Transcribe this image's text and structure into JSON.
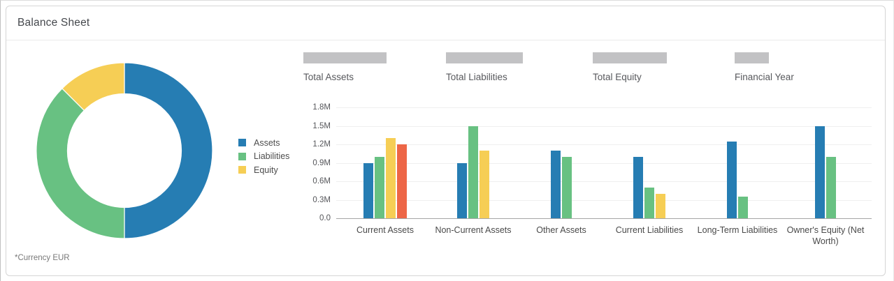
{
  "header": {
    "title": "Balance Sheet"
  },
  "footnote": "*Currency EUR",
  "colors": {
    "assets_blue": "#267db3",
    "liabilities_green": "#68c182",
    "equity_yellow": "#f6ce55",
    "extra_red": "#ed6647",
    "skeleton_gray": "#c2c2c4"
  },
  "kpis": [
    {
      "label": "Total Assets"
    },
    {
      "label": "Total Liabilities"
    },
    {
      "label": "Total Equity"
    },
    {
      "label": "Financial Year"
    }
  ],
  "legend": {
    "entries": [
      "Assets",
      "Liabilities",
      "Equity"
    ],
    "position": "left-of-bar-chart"
  },
  "chart_data": [
    {
      "type": "pie",
      "subtype": "donut",
      "labels": [
        "Assets",
        "Liabilities",
        "Equity"
      ],
      "values_percent": [
        50,
        37.5,
        12.5
      ],
      "colors": [
        "#267db3",
        "#68c182",
        "#f6ce55"
      ],
      "start_angle": "12 o'clock, clockwise",
      "note": "*Currency EUR"
    },
    {
      "type": "bar",
      "categories": [
        "Current Assets",
        "Non-Current Assets",
        "Other Assets",
        "Current Liabilities",
        "Long-Term Liabilities",
        "Owner's Equity (Net Worth)"
      ],
      "series": [
        {
          "name": "Assets",
          "color": "#267db3",
          "values": [
            0.9,
            0.9,
            1.1,
            1.0,
            1.25,
            1.5
          ]
        },
        {
          "name": "Liabilities",
          "color": "#68c182",
          "values": [
            1.0,
            1.5,
            1.0,
            0.5,
            0.35,
            1.0
          ]
        },
        {
          "name": "Equity",
          "color": "#f6ce55",
          "values": [
            1.3,
            1.1,
            null,
            0.4,
            null,
            null
          ]
        },
        {
          "name": "",
          "color": "#ed6647",
          "values": [
            1.2,
            null,
            null,
            null,
            null,
            null
          ]
        }
      ],
      "unit": "M",
      "ylim": [
        0,
        1.8
      ],
      "ytick_step": 0.3,
      "ytick_labels": [
        "1.8M",
        "1.5M",
        "1.2M",
        "0.9M",
        "0.6M",
        "0.3M",
        "0.0"
      ],
      "grid": true,
      "legend_entries": [
        "Assets",
        "Liabilities",
        "Equity"
      ]
    }
  ]
}
